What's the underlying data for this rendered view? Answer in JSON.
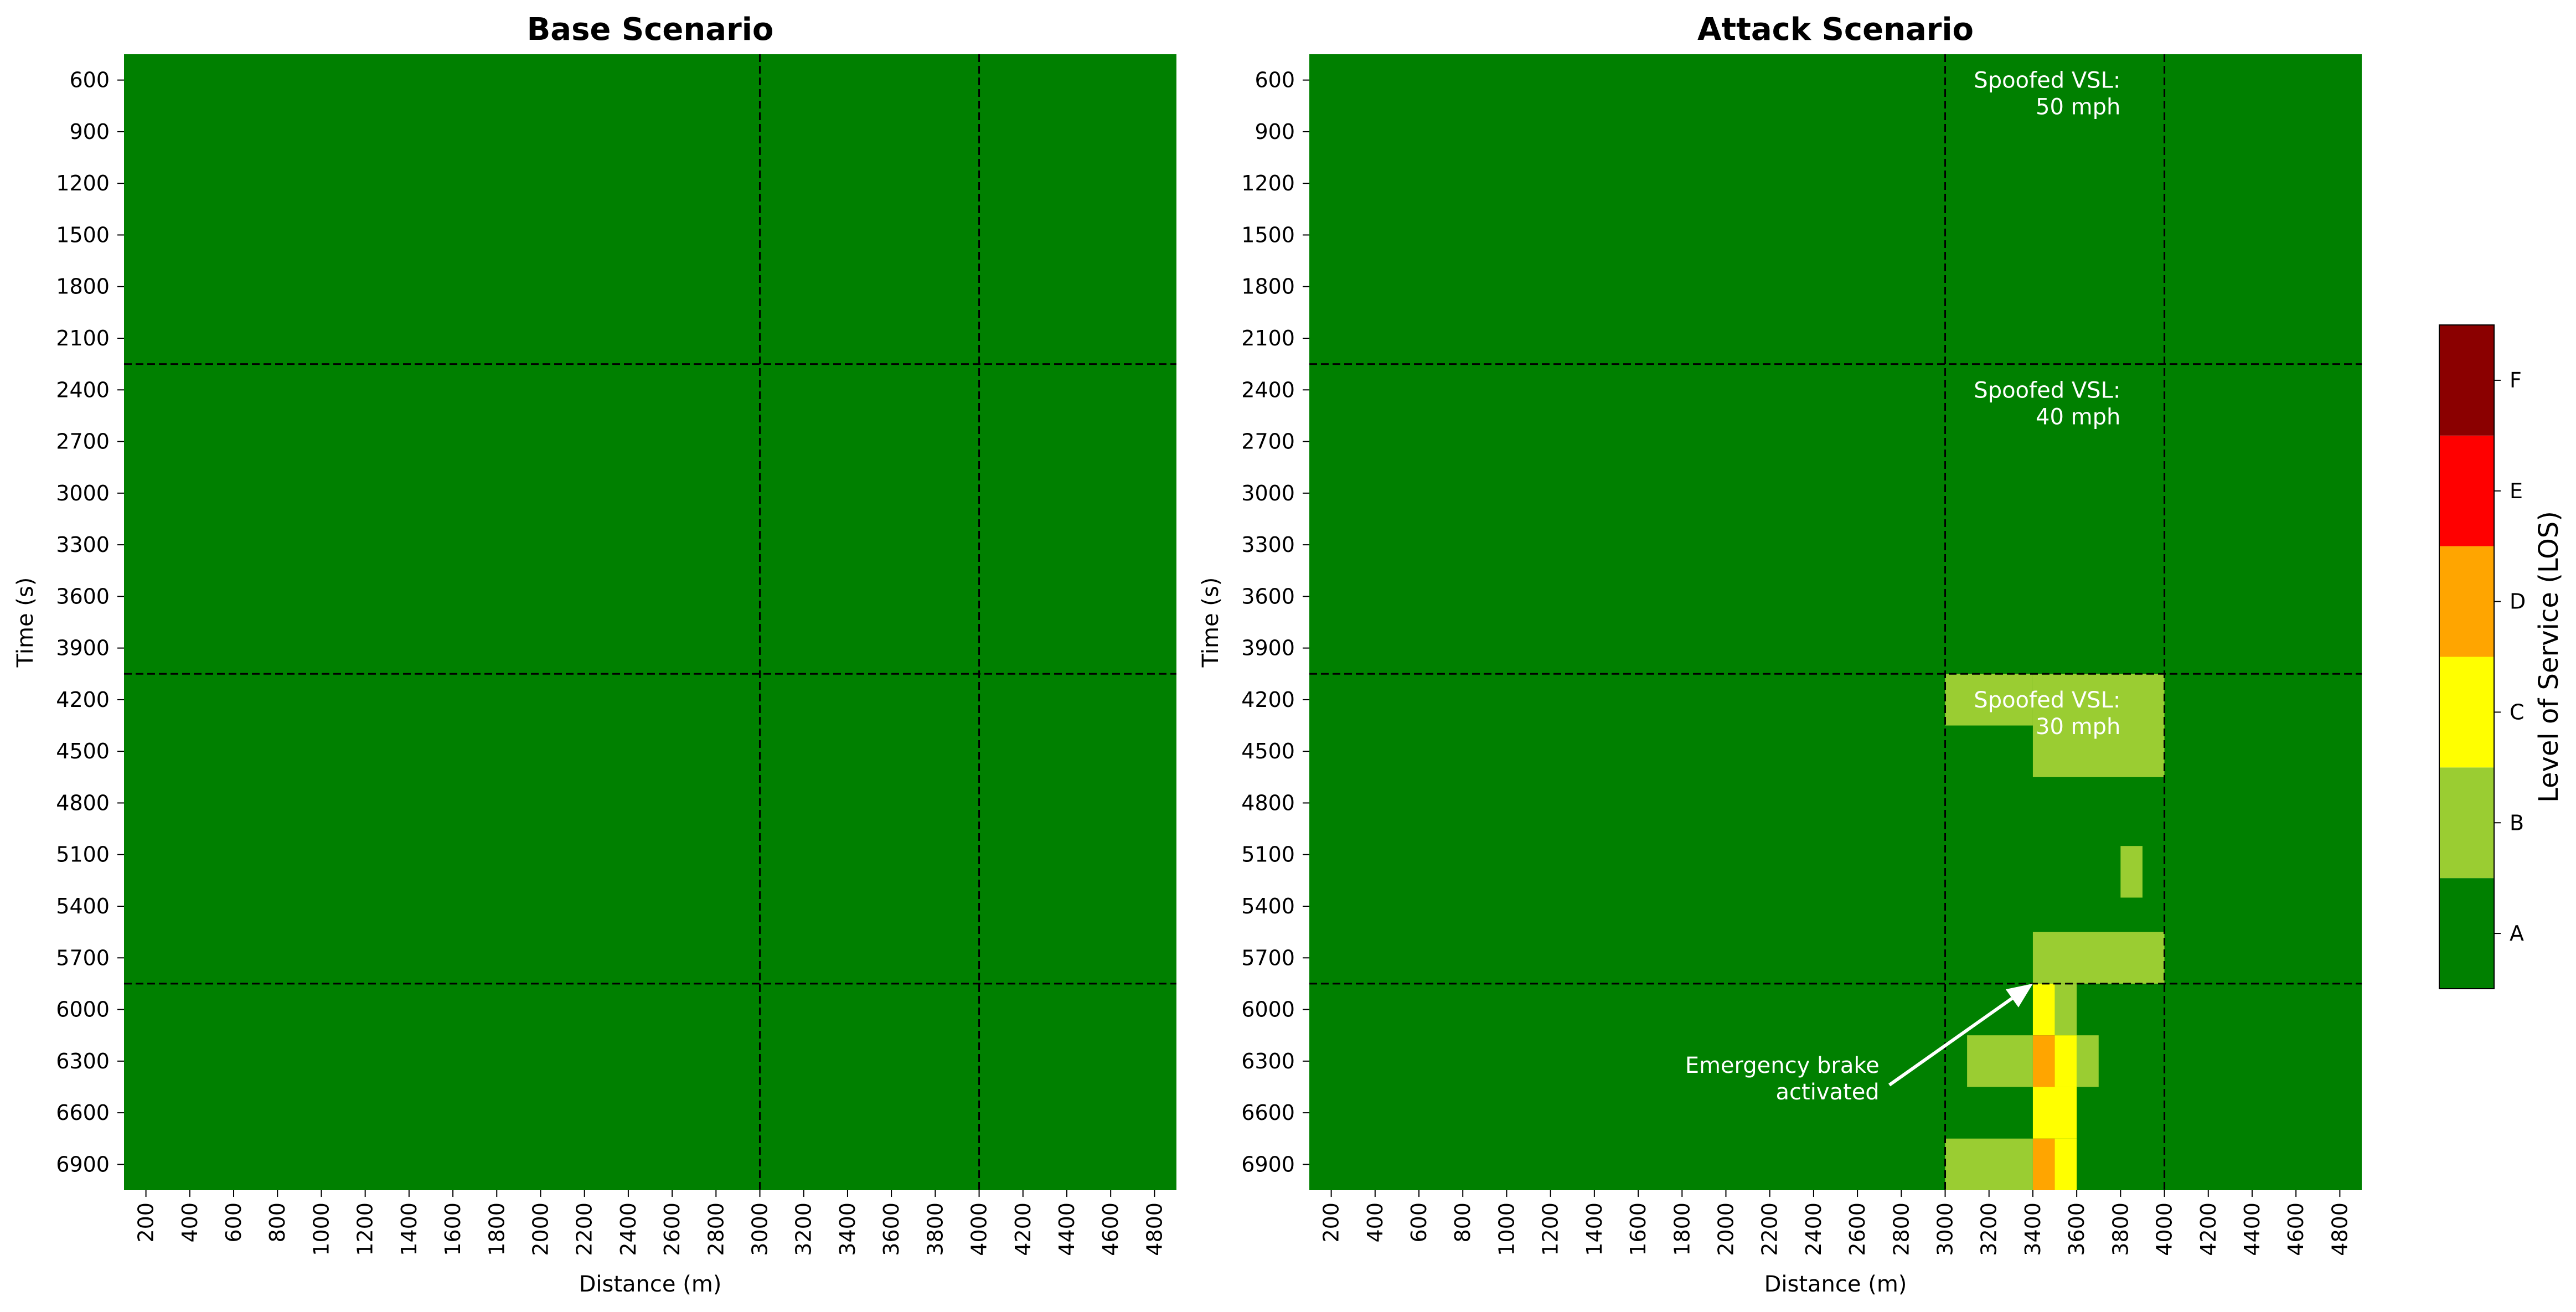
{
  "chart_data": [
    {
      "type": "heatmap",
      "title": "Base Scenario",
      "xlabel": "Distance (m)",
      "ylabel": "Time (s)",
      "x_ticks": [
        200,
        400,
        600,
        800,
        1000,
        1200,
        1400,
        1600,
        1800,
        2000,
        2200,
        2400,
        2600,
        2800,
        3000,
        3200,
        3400,
        3600,
        3800,
        4000,
        4200,
        4400,
        4600,
        4800
      ],
      "y_ticks": [
        600,
        900,
        1200,
        1500,
        1800,
        2100,
        2400,
        2700,
        3000,
        3300,
        3600,
        3900,
        4200,
        4500,
        4800,
        5100,
        5400,
        5700,
        6000,
        6300,
        6600,
        6900
      ],
      "x_range": [
        100,
        4900
      ],
      "y_range": [
        450,
        7050
      ],
      "dashed_lines": {
        "x": [
          3000,
          4000
        ],
        "y": [
          2250,
          4050,
          5850
        ]
      },
      "default_los": "A",
      "cells": []
    },
    {
      "type": "heatmap",
      "title": "Attack Scenario",
      "xlabel": "Distance (m)",
      "ylabel": "Time (s)",
      "x_ticks": [
        200,
        400,
        600,
        800,
        1000,
        1200,
        1400,
        1600,
        1800,
        2000,
        2200,
        2400,
        2600,
        2800,
        3000,
        3200,
        3400,
        3600,
        3800,
        4000,
        4200,
        4400,
        4600,
        4800
      ],
      "y_ticks": [
        600,
        900,
        1200,
        1500,
        1800,
        2100,
        2400,
        2700,
        3000,
        3300,
        3600,
        3900,
        4200,
        4500,
        4800,
        5100,
        5400,
        5700,
        6000,
        6300,
        6600,
        6900
      ],
      "x_range": [
        100,
        4900
      ],
      "y_range": [
        450,
        7050
      ],
      "dashed_lines": {
        "x": [
          3000,
          4000
        ],
        "y": [
          2250,
          4050,
          5850
        ]
      },
      "default_los": "A",
      "cells": [
        {
          "x": [
            3000,
            3400
          ],
          "y": [
            4050,
            4350
          ],
          "los": "B"
        },
        {
          "x": [
            3400,
            4000
          ],
          "y": [
            4050,
            4650
          ],
          "los": "B"
        },
        {
          "x": [
            3800,
            3900
          ],
          "y": [
            5050,
            5350
          ],
          "los": "B"
        },
        {
          "x": [
            3400,
            4000
          ],
          "y": [
            5550,
            5850
          ],
          "los": "B"
        },
        {
          "x": [
            3400,
            3500
          ],
          "y": [
            5850,
            6150
          ],
          "los": "C"
        },
        {
          "x": [
            3500,
            3600
          ],
          "y": [
            5850,
            6150
          ],
          "los": "B"
        },
        {
          "x": [
            3100,
            3400
          ],
          "y": [
            6150,
            6450
          ],
          "los": "B"
        },
        {
          "x": [
            3400,
            3500
          ],
          "y": [
            6150,
            6450
          ],
          "los": "D"
        },
        {
          "x": [
            3500,
            3600
          ],
          "y": [
            6150,
            6450
          ],
          "los": "C"
        },
        {
          "x": [
            3600,
            3700
          ],
          "y": [
            6150,
            6450
          ],
          "los": "B"
        },
        {
          "x": [
            3400,
            3600
          ],
          "y": [
            6450,
            6750
          ],
          "los": "C"
        },
        {
          "x": [
            3000,
            3400
          ],
          "y": [
            6750,
            7050
          ],
          "los": "B"
        },
        {
          "x": [
            3400,
            3500
          ],
          "y": [
            6750,
            7050
          ],
          "los": "D"
        },
        {
          "x": [
            3500,
            3600
          ],
          "y": [
            6750,
            7050
          ],
          "los": "C"
        }
      ],
      "annotations": [
        {
          "lines": [
            "Spoofed VSL:",
            "50 mph"
          ],
          "x": 3800,
          "y": 600
        },
        {
          "lines": [
            "Spoofed VSL:",
            "40 mph"
          ],
          "x": 3800,
          "y": 2400
        },
        {
          "lines": [
            "Spoofed VSL:",
            "30 mph"
          ],
          "x": 3800,
          "y": 4200
        }
      ],
      "arrow_annotation": {
        "lines": [
          "Emergency brake",
          "activated"
        ],
        "text_at": [
          2700,
          6400
        ],
        "points_to": [
          3400,
          5850
        ]
      }
    }
  ],
  "colorbar": {
    "label": "Level of Service (LOS)",
    "levels": [
      "A",
      "B",
      "C",
      "D",
      "E",
      "F"
    ],
    "colors": {
      "A": "#008000",
      "B": "#9acd32",
      "C": "#ffff00",
      "D": "#ffa500",
      "E": "#ff0000",
      "F": "#8b0000"
    }
  }
}
